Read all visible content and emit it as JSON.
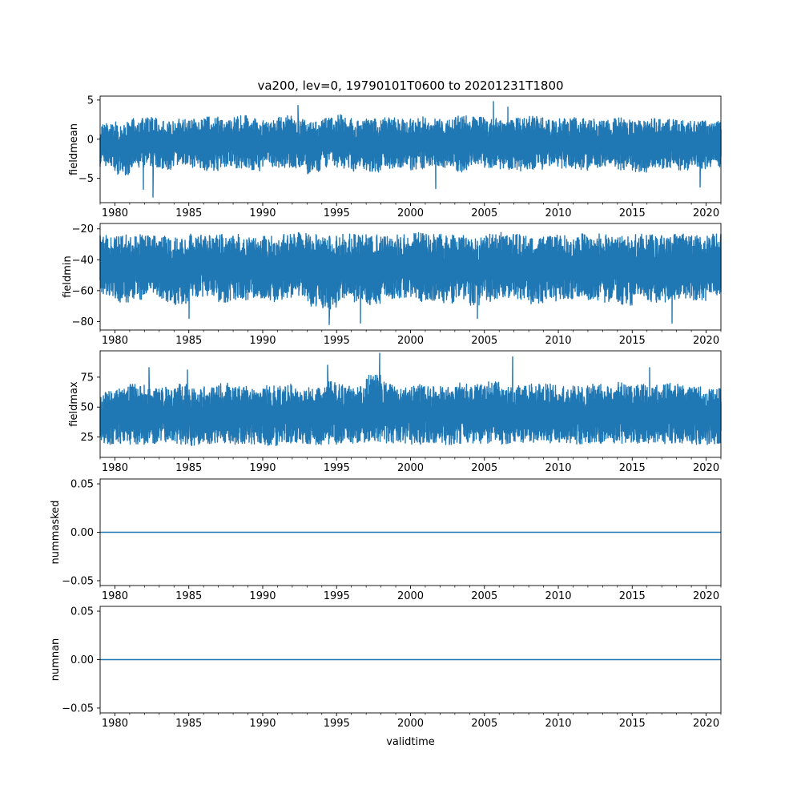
{
  "figure": {
    "title": "va200, lev=0, 19790101T0600 to 20201231T1800",
    "xlabel": "validtime"
  },
  "colors": {
    "series": "#1f77b4",
    "axes": "#000000",
    "background": "#ffffff"
  },
  "chart_data": [
    {
      "type": "line",
      "ylabel": "fieldmean",
      "xlim": [
        1979.0,
        2021.0
      ],
      "ylim": [
        -8.1,
        5.5
      ],
      "x_ticks": [
        1980,
        1985,
        1990,
        1995,
        2000,
        2005,
        2010,
        2015,
        2020
      ],
      "y_ticks": [
        -5,
        0,
        5
      ],
      "y_tick_labels": [
        "−5",
        "0",
        "5"
      ],
      "envelope": {
        "low": [
          -3.8,
          -5.0,
          -4.2,
          -3.9,
          -4.5,
          -3.6,
          -4.0,
          -4.4,
          -3.9,
          -4.1,
          -4.6,
          -3.8,
          -4.0,
          -4.3,
          -4.8,
          -3.9,
          -4.2,
          -4.5,
          -4.7,
          -4.1,
          -4.0,
          -4.4,
          -3.8,
          -4.1,
          -4.6,
          -3.7,
          -4.0,
          -4.2,
          -4.5,
          -4.3,
          -3.9,
          -4.1,
          -4.4,
          -4.0,
          -3.8,
          -4.3,
          -4.6,
          -4.0,
          -4.2,
          -4.4,
          -4.1,
          -3.9
        ],
        "high": [
          2.4,
          2.6,
          3.0,
          3.2,
          2.7,
          3.0,
          2.9,
          3.3,
          2.8,
          3.5,
          3.0,
          2.7,
          3.4,
          2.9,
          3.0,
          3.1,
          3.6,
          2.8,
          3.0,
          3.2,
          2.9,
          3.3,
          3.0,
          2.8,
          3.4,
          3.2,
          3.0,
          2.9,
          3.1,
          3.3,
          2.8,
          3.0,
          3.2,
          2.9,
          3.0,
          3.1,
          2.7,
          3.0,
          2.9,
          2.8,
          2.7,
          2.6
        ]
      },
      "extremes": [
        {
          "x": 1982.6,
          "y": -7.4
        },
        {
          "x": 1981.9,
          "y": -6.4
        },
        {
          "x": 2001.7,
          "y": -6.3
        },
        {
          "x": 2019.6,
          "y": -6.1
        },
        {
          "x": 2005.6,
          "y": 4.8
        },
        {
          "x": 1992.4,
          "y": 4.3
        },
        {
          "x": 2006.6,
          "y": 4.1
        }
      ]
    },
    {
      "type": "line",
      "ylabel": "fieldmin",
      "xlim": [
        1979.0,
        2021.0
      ],
      "ylim": [
        -85.5,
        -16.5
      ],
      "x_ticks": [
        1980,
        1985,
        1990,
        1995,
        2000,
        2005,
        2010,
        2015,
        2020
      ],
      "y_ticks": [
        -80,
        -60,
        -40,
        -20
      ],
      "y_tick_labels": [
        "−80",
        "−60",
        "−40",
        "−20"
      ],
      "envelope": {
        "low": [
          -66,
          -70,
          -68,
          -65,
          -70,
          -72,
          -68,
          -66,
          -70,
          -69,
          -67,
          -71,
          -68,
          -66,
          -73,
          -75,
          -69,
          -70,
          -72,
          -68,
          -67,
          -70,
          -69,
          -71,
          -68,
          -72,
          -70,
          -67,
          -69,
          -71,
          -70,
          -68,
          -66,
          -69,
          -70,
          -72,
          -68,
          -70,
          -71,
          -68,
          -69,
          -66
        ],
        "high": [
          -22,
          -21,
          -21,
          -22,
          -21,
          -21,
          -20,
          -22,
          -21,
          -21,
          -22,
          -21,
          -21,
          -20,
          -21,
          -22,
          -21,
          -21,
          -21,
          -22,
          -21,
          -20,
          -21,
          -21,
          -22,
          -21,
          -21,
          -20,
          -21,
          -22,
          -21,
          -21,
          -21,
          -20,
          -21,
          -22,
          -21,
          -21,
          -20,
          -21,
          -22,
          -21
        ]
      },
      "extremes": [
        {
          "x": 1994.5,
          "y": -82
        },
        {
          "x": 1996.6,
          "y": -81
        },
        {
          "x": 2017.7,
          "y": -81
        },
        {
          "x": 1985.0,
          "y": -78
        },
        {
          "x": 2004.5,
          "y": -78
        }
      ]
    },
    {
      "type": "line",
      "ylabel": "fieldmax",
      "xlim": [
        1979.0,
        2021.0
      ],
      "ylim": [
        8.0,
        97.0
      ],
      "x_ticks": [
        1980,
        1985,
        1990,
        1995,
        2000,
        2005,
        2010,
        2015,
        2020
      ],
      "y_ticks": [
        25,
        50,
        75
      ],
      "y_tick_labels": [
        "25",
        "50",
        "75"
      ],
      "envelope": {
        "low": [
          16,
          17,
          16,
          16,
          17,
          16,
          15,
          16,
          17,
          16,
          16,
          15,
          16,
          17,
          16,
          16,
          17,
          16,
          18,
          17,
          17,
          16,
          17,
          16,
          17,
          16,
          17,
          16,
          16,
          17,
          16,
          17,
          16,
          16,
          17,
          16,
          16,
          17,
          16,
          17,
          16,
          16
        ],
        "high": [
          66,
          70,
          72,
          68,
          70,
          72,
          68,
          70,
          73,
          70,
          68,
          71,
          72,
          70,
          69,
          75,
          72,
          70,
          80,
          74,
          70,
          72,
          71,
          70,
          73,
          72,
          74,
          70,
          71,
          72,
          73,
          70,
          71,
          72,
          70,
          74,
          72,
          71,
          73,
          72,
          70,
          69
        ]
      },
      "extremes": [
        {
          "x": 1997.9,
          "y": 95
        },
        {
          "x": 2006.9,
          "y": 92
        },
        {
          "x": 1994.4,
          "y": 85
        },
        {
          "x": 1982.3,
          "y": 83
        },
        {
          "x": 2016.2,
          "y": 83
        },
        {
          "x": 1984.9,
          "y": 81
        }
      ]
    },
    {
      "type": "line",
      "ylabel": "nummasked",
      "xlim": [
        1979.0,
        2021.0
      ],
      "ylim": [
        -0.055,
        0.055
      ],
      "x_ticks": [
        1980,
        1985,
        1990,
        1995,
        2000,
        2005,
        2010,
        2015,
        2020
      ],
      "y_ticks": [
        -0.05,
        0.0,
        0.05
      ],
      "y_tick_labels": [
        "−0.05",
        "0.00",
        "0.05"
      ],
      "constant": 0.0
    },
    {
      "type": "line",
      "ylabel": "numnan",
      "xlim": [
        1979.0,
        2021.0
      ],
      "ylim": [
        -0.055,
        0.055
      ],
      "x_ticks": [
        1980,
        1985,
        1990,
        1995,
        2000,
        2005,
        2010,
        2015,
        2020
      ],
      "y_ticks": [
        -0.05,
        0.0,
        0.05
      ],
      "y_tick_labels": [
        "−0.05",
        "0.00",
        "0.05"
      ],
      "constant": 0.0
    }
  ]
}
